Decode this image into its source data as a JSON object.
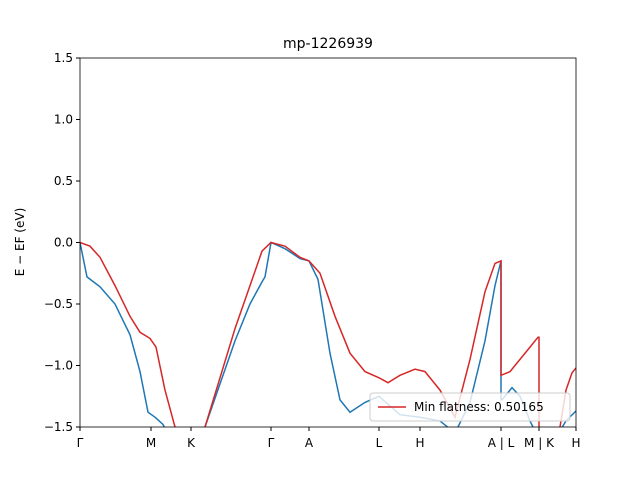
{
  "chart_data": {
    "type": "line",
    "title": "mp-1226939",
    "ylabel": "E − EF (eV)",
    "xlim": [
      0,
      4.96
    ],
    "ylim": [
      -1.5,
      1.5
    ],
    "xticks": [
      {
        "value": 0,
        "label": "Γ"
      },
      {
        "value": 0.71,
        "label": "M"
      },
      {
        "value": 1.11,
        "label": "K"
      },
      {
        "value": 1.91,
        "label": "Γ"
      },
      {
        "value": 2.29,
        "label": "A"
      },
      {
        "value": 2.99,
        "label": "L"
      },
      {
        "value": 3.4,
        "label": "H"
      },
      {
        "value": 4.21,
        "label": "A | L"
      },
      {
        "value": 4.59,
        "label": "M | K"
      },
      {
        "value": 4.96,
        "label": "H"
      }
    ],
    "yticks": [
      {
        "value": -1.5,
        "label": "−1.5"
      },
      {
        "value": -1.0,
        "label": "−1.0"
      },
      {
        "value": -0.5,
        "label": "−0.5"
      },
      {
        "value": 0.0,
        "label": "0.0"
      },
      {
        "value": 0.5,
        "label": "0.5"
      },
      {
        "value": 1.0,
        "label": "1.0"
      },
      {
        "value": 1.5,
        "label": "1.5"
      }
    ],
    "legend": "lower right",
    "series": [
      {
        "color": "#1f77b4",
        "x": [
          0,
          0.07,
          0.2,
          0.35,
          0.5,
          0.6,
          0.68,
          0.75,
          0.83,
          0.9,
          0.98,
          1.25,
          1.4,
          1.55,
          1.7,
          1.82,
          1.85,
          1.91,
          2.05,
          2.2,
          2.29,
          2.38,
          2.5,
          2.6,
          2.7,
          2.85,
          2.99,
          3.1,
          3.2,
          3.4,
          3.6,
          3.75,
          3.9,
          4.05,
          4.15,
          4.21,
          4.21,
          4.22,
          4.32,
          4.4,
          4.5,
          4.59,
          4.75,
          4.86,
          4.96
        ],
        "values": [
          0.0,
          -0.28,
          -0.36,
          -0.5,
          -0.75,
          -1.05,
          -1.38,
          -1.42,
          -1.48,
          -1.6,
          -1.7,
          -1.5,
          -1.15,
          -0.8,
          -0.5,
          -0.32,
          -0.28,
          0.0,
          -0.05,
          -0.13,
          -0.15,
          -0.3,
          -0.9,
          -1.28,
          -1.38,
          -1.3,
          -1.25,
          -1.33,
          -1.4,
          -1.42,
          -1.45,
          -1.55,
          -1.3,
          -0.8,
          -0.35,
          -0.15,
          -1.28,
          -1.28,
          -1.18,
          -1.25,
          -1.45,
          -1.6,
          -1.6,
          -1.45,
          -1.37
        ]
      },
      {
        "name": "Min flatness: 0.50165",
        "color": "#d62728",
        "x": [
          0,
          0.1,
          0.2,
          0.35,
          0.5,
          0.6,
          0.7,
          0.76,
          0.85,
          0.95,
          1.0,
          1.25,
          1.4,
          1.55,
          1.7,
          1.82,
          1.91,
          2.05,
          2.2,
          2.29,
          2.4,
          2.55,
          2.7,
          2.85,
          2.99,
          3.08,
          3.2,
          3.35,
          3.45,
          3.6,
          3.75,
          3.9,
          4.05,
          4.15,
          4.21,
          4.21,
          4.3,
          4.4,
          4.5,
          4.58,
          4.59,
          4.59,
          4.78,
          4.86,
          4.92,
          4.96
        ],
        "values": [
          0.0,
          -0.03,
          -0.12,
          -0.35,
          -0.6,
          -0.73,
          -0.78,
          -0.85,
          -1.2,
          -1.5,
          -1.65,
          -1.5,
          -1.1,
          -0.7,
          -0.35,
          -0.07,
          0.0,
          -0.03,
          -0.12,
          -0.15,
          -0.25,
          -0.6,
          -0.9,
          -1.05,
          -1.1,
          -1.14,
          -1.08,
          -1.03,
          -1.05,
          -1.2,
          -1.42,
          -0.95,
          -0.4,
          -0.17,
          -0.15,
          -1.08,
          -1.05,
          -0.95,
          -0.85,
          -0.77,
          -0.77,
          -1.6,
          -1.6,
          -1.2,
          -1.06,
          -1.02
        ]
      }
    ]
  }
}
